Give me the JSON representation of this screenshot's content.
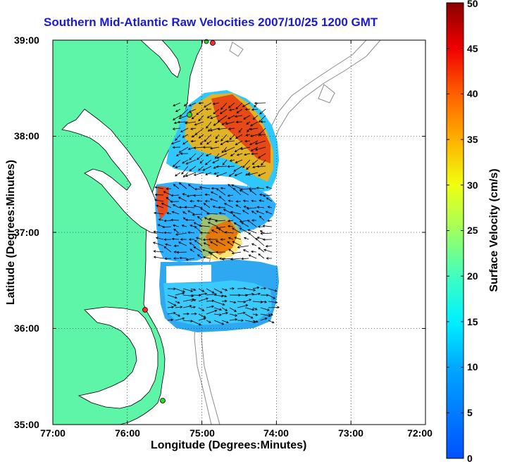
{
  "title": "Southern Mid-Atlantic Raw Velocities 2007/10/25 1200 GMT",
  "xlabel": "Longitude (Degrees:Minutes)",
  "ylabel": "Latitude (Degrees:Minutes)",
  "colorbar": {
    "label": "Surface Velocity (cm/s)",
    "ticks": [
      "0",
      "5",
      "10",
      "15",
      "20",
      "25",
      "30",
      "35",
      "40",
      "45",
      "50"
    ],
    "range": [
      0,
      50
    ],
    "colormap": "jet"
  },
  "map": {
    "lon_ticks": [
      "77:00",
      "76:00",
      "75:00",
      "74:00",
      "73:00",
      "72:00"
    ],
    "lat_ticks": [
      "39:00",
      "38:00",
      "37:00",
      "36:00",
      "35:00"
    ],
    "lon_range": [
      -77,
      -72
    ],
    "lat_range": [
      35,
      39
    ],
    "grid": "dotted",
    "land_color": "#5ff5a8",
    "water_color": "#ffffff",
    "bathymetry_color": "#8a8a8a",
    "station_colors": [
      "#ff2a2a",
      "#2ad62a"
    ]
  }
}
